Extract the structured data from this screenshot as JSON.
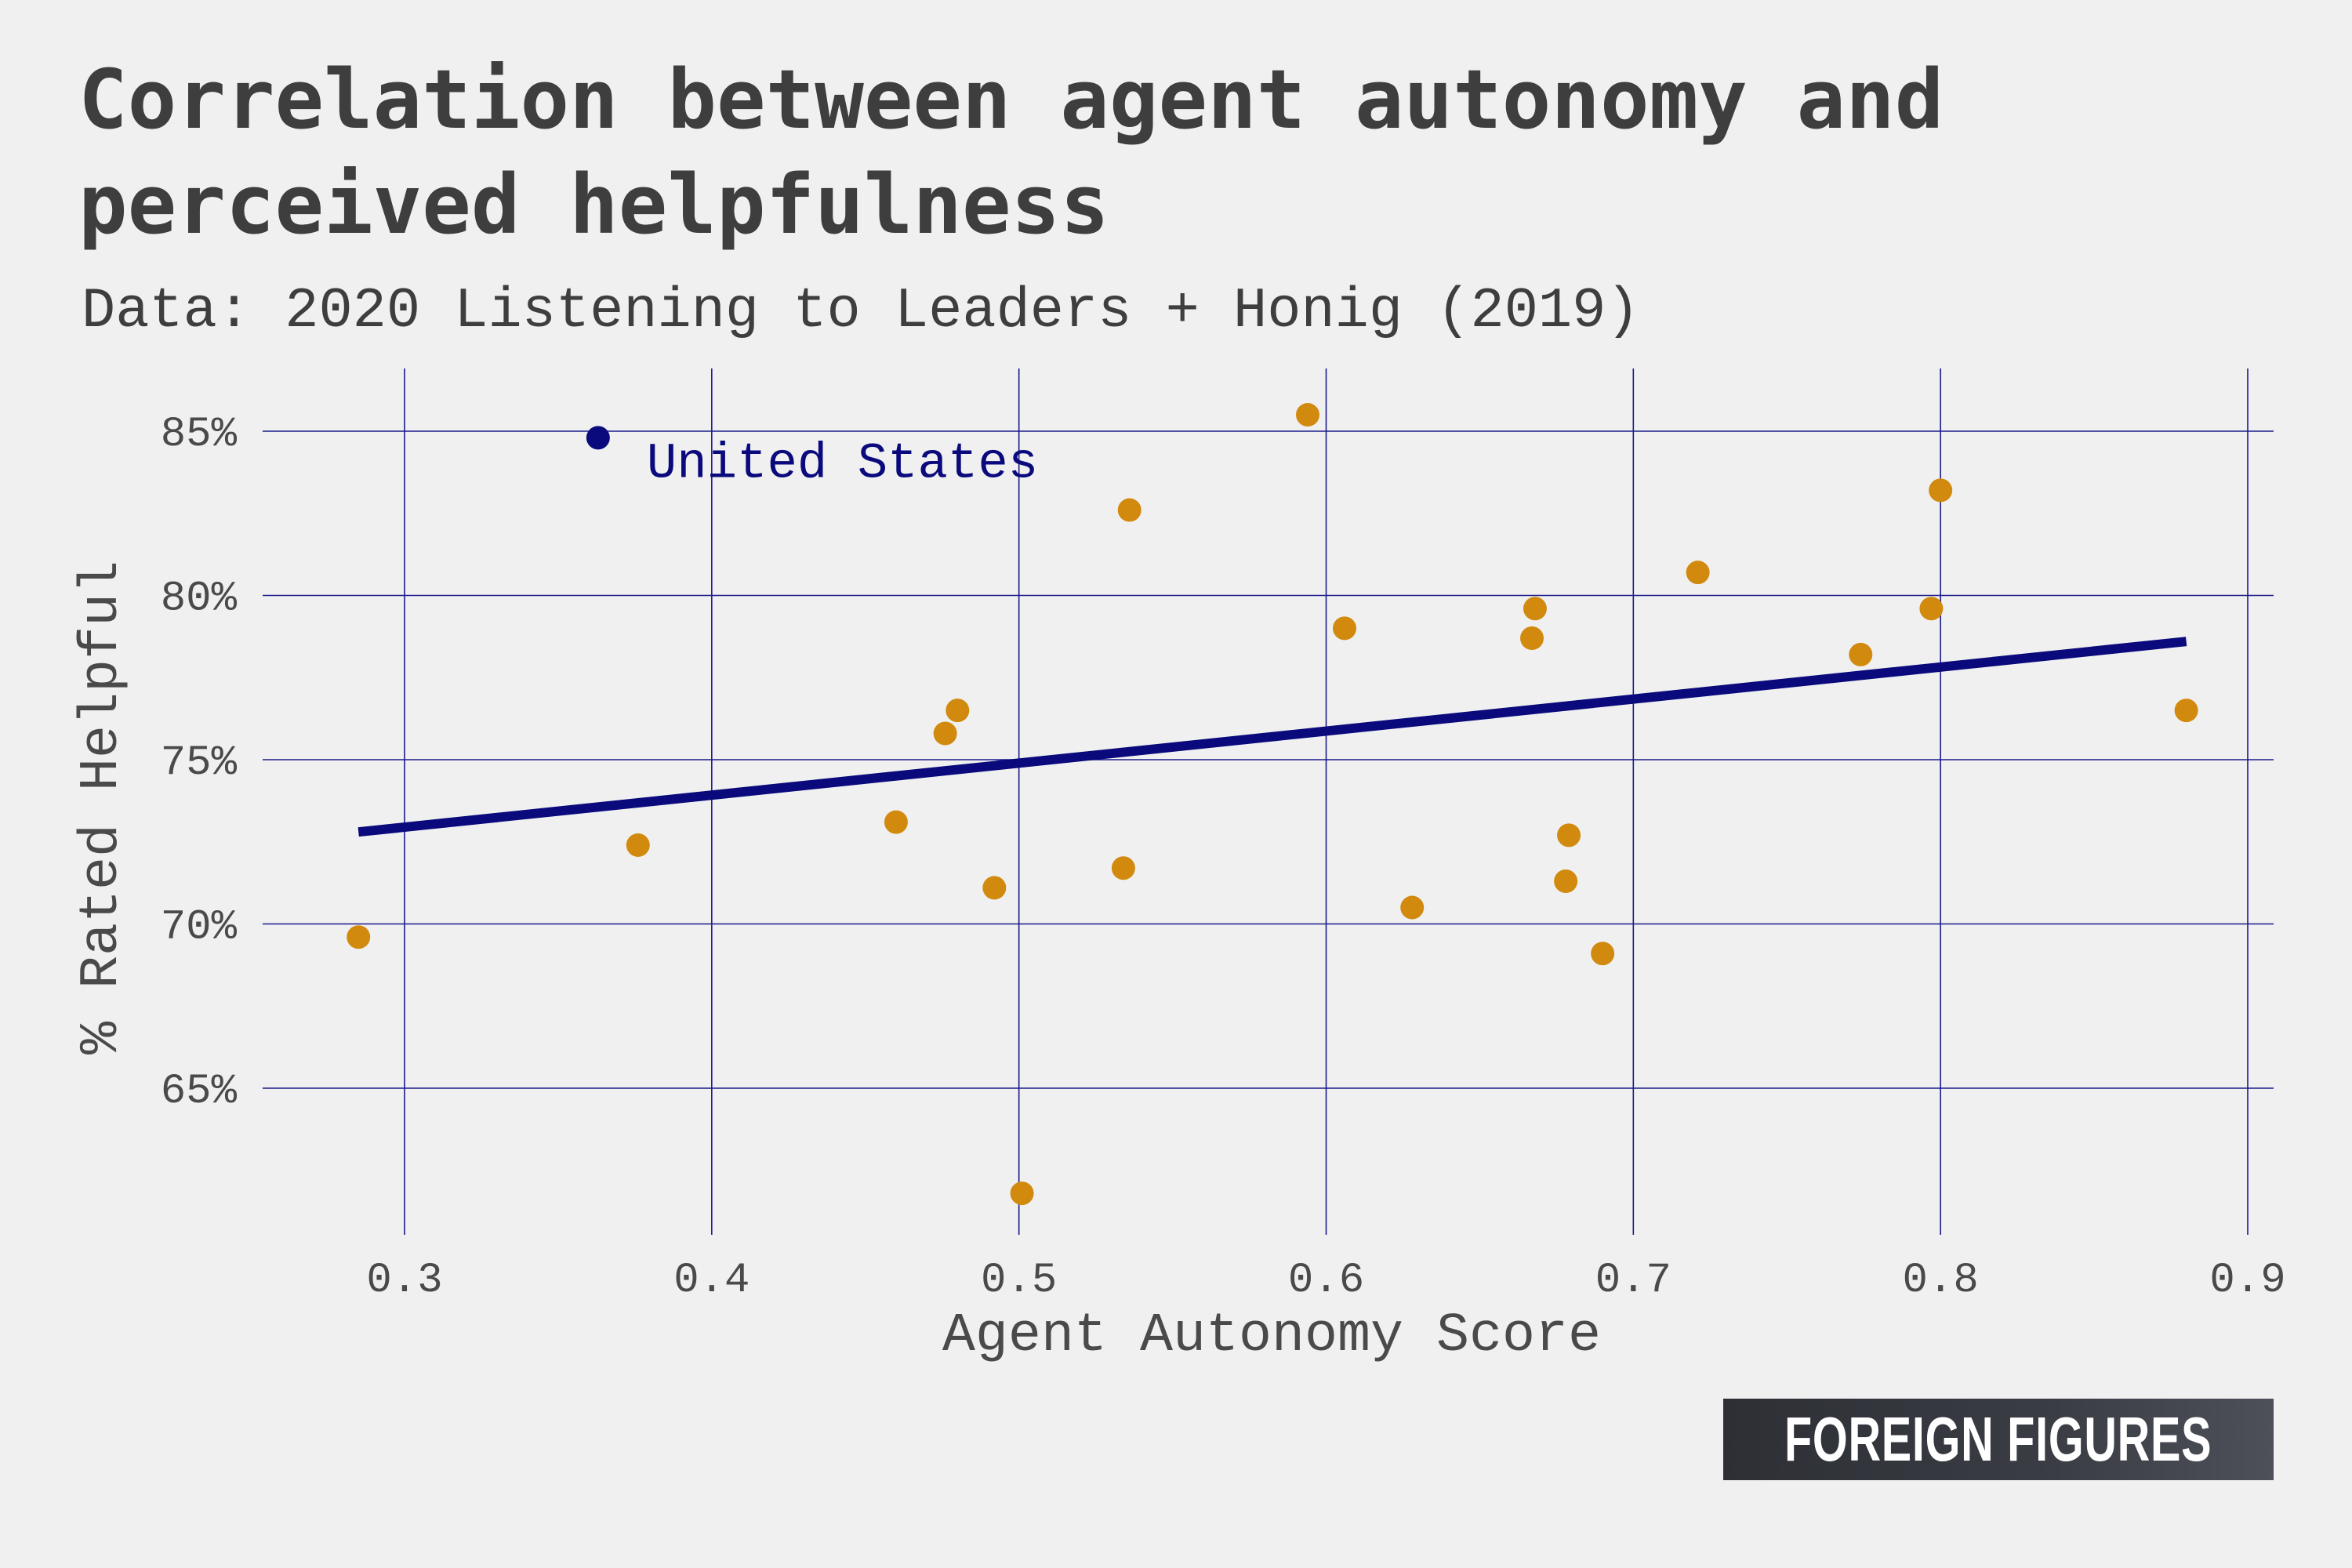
{
  "title": "Correlation between agent autonomy and perceived helpfulness",
  "subtitle": "Data: 2020 Listening to Leaders + Honig (2019)",
  "logo_text": "FOREIGN FIGURES",
  "colors": {
    "background": "#f0f0f0",
    "grid": "#1a1a8c",
    "points": "#d18a0e",
    "highlight": "#0a0a7d",
    "trend": "#0a0a7d",
    "text": "#3e3e3e"
  },
  "chart_data": {
    "type": "scatter",
    "xlabel": "Agent Autonomy Score",
    "ylabel": "% Rated Helpful",
    "xlim": [
      0.25,
      0.91
    ],
    "ylim": [
      61,
      86.5
    ],
    "x_ticks": [
      0.3,
      0.4,
      0.5,
      0.6,
      0.7,
      0.8,
      0.9
    ],
    "x_tick_labels": [
      "0.3",
      "0.4",
      "0.5",
      "0.6",
      "0.7",
      "0.8",
      "0.9"
    ],
    "y_ticks": [
      65,
      70,
      75,
      80,
      85
    ],
    "y_tick_labels": [
      "65%",
      "70%",
      "75%",
      "80%",
      "85%"
    ],
    "grid": true,
    "legend": "none",
    "points": [
      {
        "x": 0.285,
        "y": 69.6
      },
      {
        "x": 0.376,
        "y": 72.4
      },
      {
        "x": 0.46,
        "y": 73.1
      },
      {
        "x": 0.476,
        "y": 75.8
      },
      {
        "x": 0.48,
        "y": 76.5
      },
      {
        "x": 0.492,
        "y": 71.1
      },
      {
        "x": 0.501,
        "y": 61.8
      },
      {
        "x": 0.534,
        "y": 71.7
      },
      {
        "x": 0.536,
        "y": 82.6
      },
      {
        "x": 0.594,
        "y": 85.5
      },
      {
        "x": 0.606,
        "y": 79.0
      },
      {
        "x": 0.628,
        "y": 70.5
      },
      {
        "x": 0.667,
        "y": 78.7
      },
      {
        "x": 0.668,
        "y": 79.6
      },
      {
        "x": 0.678,
        "y": 71.3
      },
      {
        "x": 0.679,
        "y": 72.7
      },
      {
        "x": 0.69,
        "y": 69.1
      },
      {
        "x": 0.721,
        "y": 80.7
      },
      {
        "x": 0.774,
        "y": 78.2
      },
      {
        "x": 0.797,
        "y": 79.6
      },
      {
        "x": 0.8,
        "y": 83.2
      },
      {
        "x": 0.88,
        "y": 76.5
      }
    ],
    "highlight": {
      "label": "United States",
      "x": 0.363,
      "y": 84.8
    },
    "trendline": {
      "x": [
        0.285,
        0.88
      ],
      "y": [
        72.8,
        78.6
      ]
    }
  }
}
